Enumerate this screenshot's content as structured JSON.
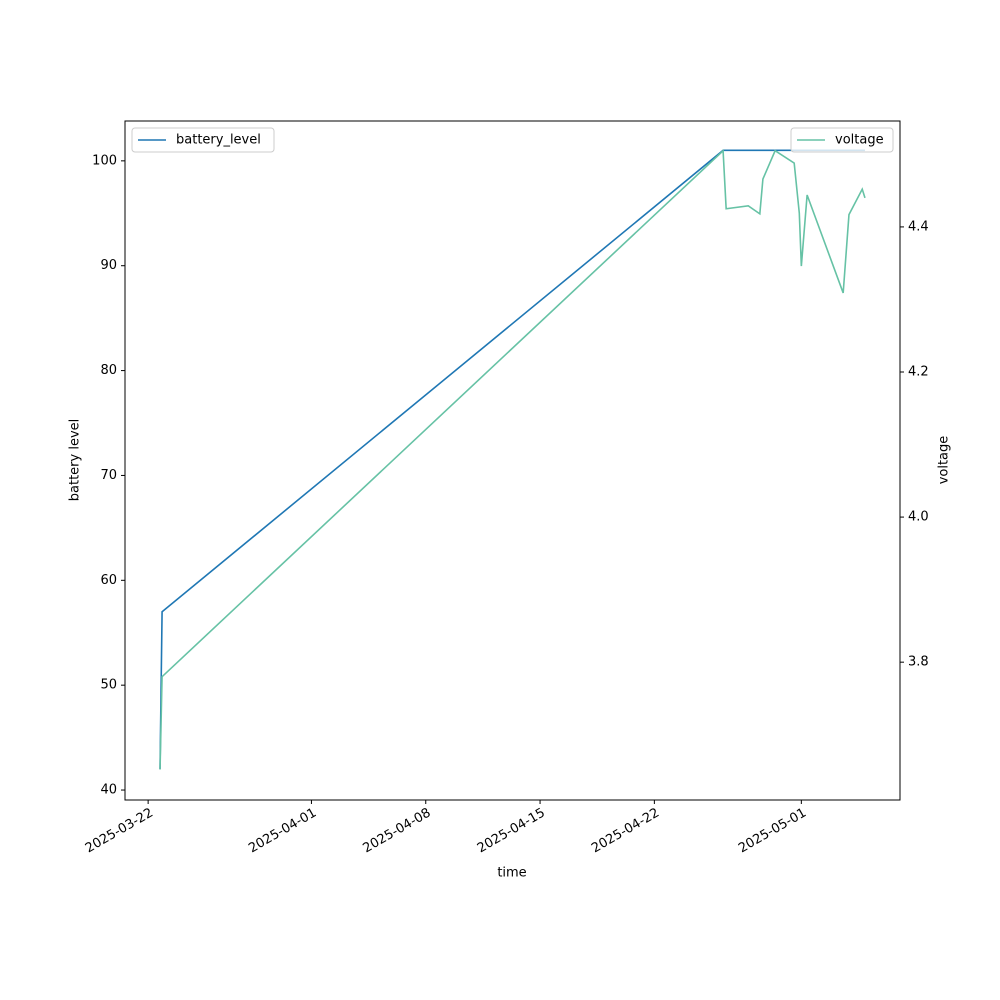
{
  "chart_data": {
    "type": "line",
    "x_label": "time",
    "y_label": "battery level",
    "y2_label": "voltage",
    "x": [
      "2025-03-22T17:30",
      "2025-03-22T20:30",
      "2025-04-26T05:00",
      "2025-04-26T09:30",
      "2025-04-27T18:00",
      "2025-04-28T11:00",
      "2025-04-28T15:30",
      "2025-04-29T09:30",
      "2025-04-30T13:30",
      "2025-04-30T21:00",
      "2025-05-01T00:00",
      "2025-05-01T08:30",
      "2025-05-03T13:30",
      "2025-05-03T22:00",
      "2025-05-04T17:30",
      "2025-05-04T21:30"
    ],
    "series": [
      {
        "name": "battery_level",
        "color": "#1f77b4",
        "axis": "y",
        "legend": "upper left",
        "values": [
          42,
          57,
          101,
          101,
          101,
          101,
          101,
          101,
          101,
          101,
          101,
          101,
          101,
          101,
          101,
          101
        ]
      },
      {
        "name": "voltage",
        "color": "#66c2a5",
        "axis": "y2",
        "legend": "upper right",
        "values": [
          3.652,
          3.78,
          4.505,
          4.425,
          4.429,
          4.418,
          4.466,
          4.505,
          4.488,
          4.419,
          4.346,
          4.444,
          4.309,
          4.417,
          4.452,
          4.44
        ]
      }
    ],
    "xlim": [
      "2025-03-20T14:00",
      "2025-05-07T01:00"
    ],
    "xticks": [
      "2025-03-22",
      "2025-04-01",
      "2025-04-08",
      "2025-04-15",
      "2025-04-22",
      "2025-05-01"
    ],
    "ylim": [
      39.05,
      103.8
    ],
    "yticks": [
      40,
      50,
      60,
      70,
      80,
      90,
      100
    ],
    "y2lim": [
      3.61,
      4.546
    ],
    "y2ticks": [
      3.8,
      {
        "value": 4,
        "label": "4.0"
      },
      4.2,
      4.4
    ],
    "grid": false
  }
}
